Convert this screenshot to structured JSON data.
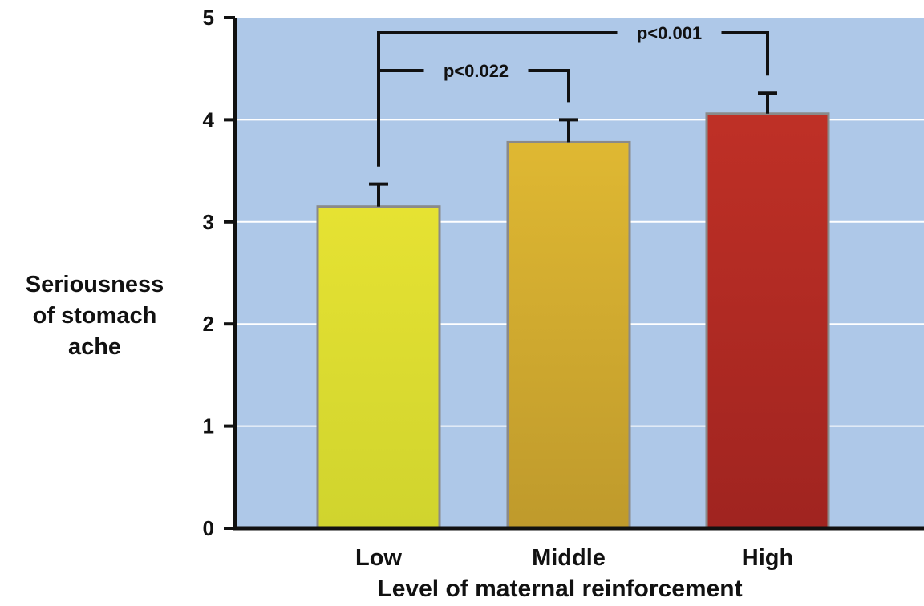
{
  "chart_data": {
    "type": "bar",
    "categories": [
      "Low",
      "Middle",
      "High"
    ],
    "values": [
      3.15,
      3.78,
      4.06
    ],
    "error_upper": [
      3.37,
      4.0,
      4.26
    ],
    "ylim": [
      0,
      5
    ],
    "yticks": [
      0,
      1,
      2,
      3,
      4,
      5
    ],
    "ylabel_lines": [
      "Seriousness",
      "of stomach",
      "ache"
    ],
    "xlabel": "Level of maternal reinforcement",
    "grid": "horizontal",
    "bar_colors": [
      {
        "top": "#e6e232",
        "bottom": "#d0d42e"
      },
      {
        "top": "#dfb832",
        "bottom": "#bf9a2c"
      },
      {
        "top": "#bf3026",
        "bottom": "#a02420"
      }
    ],
    "plot_background": "#aec8e8",
    "comparisons": [
      {
        "from": 0,
        "to": 1,
        "label": "p<0.022"
      },
      {
        "from": 0,
        "to": 2,
        "label": "p<0.001"
      }
    ]
  }
}
